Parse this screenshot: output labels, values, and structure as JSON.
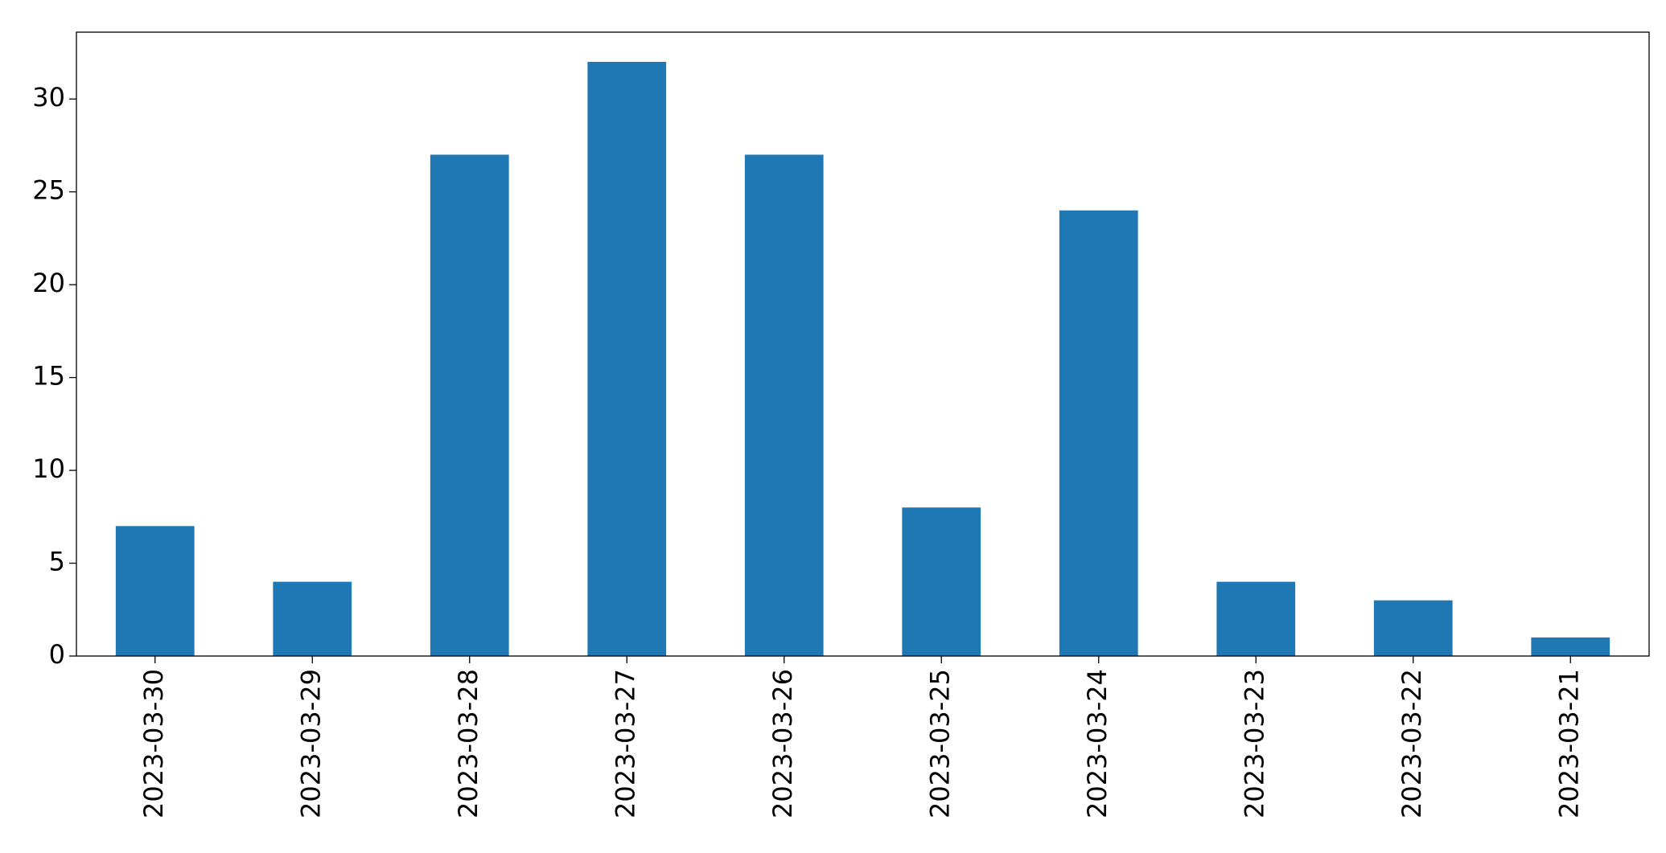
{
  "chart_data": {
    "type": "bar",
    "categories": [
      "2023-03-30",
      "2023-03-29",
      "2023-03-28",
      "2023-03-27",
      "2023-03-26",
      "2023-03-25",
      "2023-03-24",
      "2023-03-23",
      "2023-03-22",
      "2023-03-21"
    ],
    "values": [
      7,
      4,
      27,
      32,
      27,
      8,
      24,
      4,
      3,
      1
    ],
    "color": "#1f77b4",
    "ylim": [
      0,
      33.6
    ],
    "yticks": [
      0,
      5,
      10,
      15,
      20,
      25,
      30
    ],
    "grid": false
  }
}
